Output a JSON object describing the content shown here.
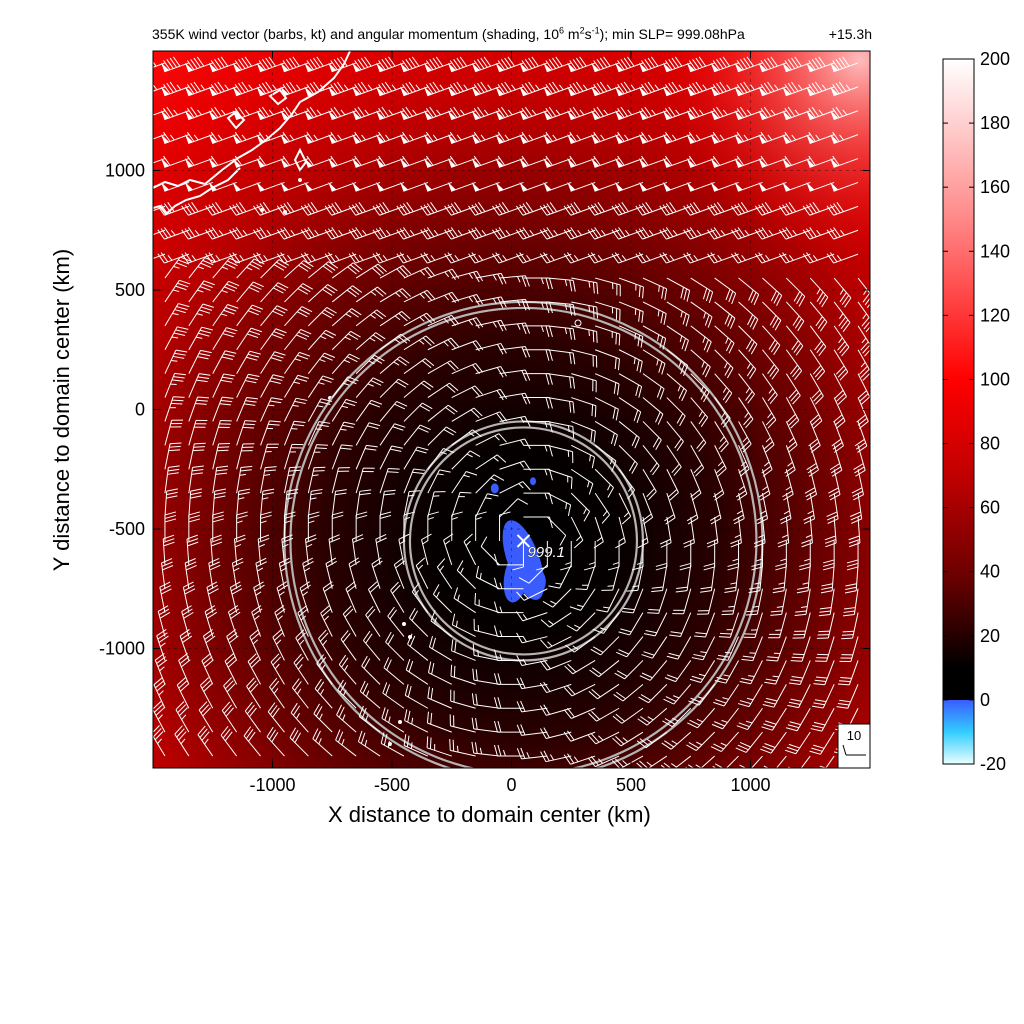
{
  "title": {
    "prefix": "355K wind vector (barbs, kt) and angular momentum (shading, 10",
    "exp1": "6",
    "mid1": " m",
    "exp2": "2",
    "mid2": "s",
    "exp3": "-1",
    "suffix": "); min SLP= 999.08hPa",
    "time": "+15.3h"
  },
  "chart_data": {
    "type": "heatmap",
    "xlabel": "X distance to domain center (km)",
    "ylabel": "Y distance to domain center (km)",
    "xlim": [
      -1500,
      1500
    ],
    "ylim": [
      -1500,
      1500
    ],
    "xticks": [
      -1000,
      -500,
      0,
      500,
      1000
    ],
    "yticks": [
      -1000,
      -500,
      0,
      500,
      1000
    ],
    "xtick_labels": [
      "-1000",
      "-500",
      "0",
      "500",
      "1000"
    ],
    "ytick_labels": [
      "-1000",
      "-500",
      "0",
      "500",
      "1000"
    ],
    "grid": true,
    "center": {
      "x": 50,
      "y": -550,
      "label": "999.1",
      "min_slp_hpa": 999.08
    },
    "range_rings_km": [
      500,
      1000
    ],
    "colorbar": {
      "min": -20,
      "max": 200,
      "ticks": [
        -20,
        0,
        20,
        40,
        60,
        80,
        100,
        120,
        140,
        160,
        180,
        200
      ],
      "tick_labels": [
        "-20",
        "0",
        "20",
        "40",
        "60",
        "80",
        "100",
        "120",
        "140",
        "160",
        "180",
        "200"
      ],
      "stops": [
        {
          "value": -20,
          "color": "#e8ffff"
        },
        {
          "value": -10,
          "color": "#33ccff"
        },
        {
          "value": 0,
          "color": "#3a5cff"
        },
        {
          "value": 0.01,
          "color": "#000000"
        },
        {
          "value": 10,
          "color": "#000000"
        },
        {
          "value": 40,
          "color": "#700000"
        },
        {
          "value": 70,
          "color": "#c00000"
        },
        {
          "value": 100,
          "color": "#ff0000"
        },
        {
          "value": 150,
          "color": "#ff8888"
        },
        {
          "value": 200,
          "color": "#ffffff"
        }
      ]
    },
    "reference_barb": {
      "label": "10",
      "speed_kt": 10
    },
    "barb_grid_spacing_km": 100
  },
  "colors": {
    "coast": "#ffffff",
    "rings": "#b4b4b4",
    "negative_momentum": "#3a5cff"
  }
}
